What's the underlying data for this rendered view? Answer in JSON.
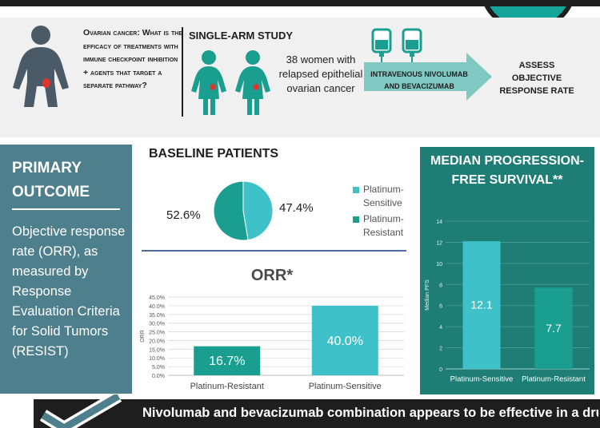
{
  "header": {
    "question": "Ovarian cancer: What is the efficacy of treatments with immune checkpoint inhibition + agents that target a separate pathway?",
    "study_title": "SINGLE-ARM STUDY",
    "study_desc": "38 women with relapsed epithelial ovarian cancer",
    "treatment": "INTRAVENOUS NIVOLUMAB AND BEVACIZUMAB",
    "outcome": "ASSESS OBJECTIVE RESPONSE RATE",
    "icons": [
      "woman-icon",
      "two-girls-icon",
      "iv-bag-icon"
    ]
  },
  "primary": {
    "title": "PRIMARY OUTCOME",
    "description": "Objective response rate (ORR), as measured by Response Evaluation Criteria for Solid Tumors (RESIST)"
  },
  "baseline": {
    "title": "BASELINE PATIENTS",
    "label_left": "52.6%",
    "label_right": "47.4%",
    "legend": [
      {
        "label": "Platinum-Sensitive",
        "color": "#3fc1c9"
      },
      {
        "label": "Platinum-Resistant",
        "color": "#1a9e90"
      }
    ]
  },
  "orr": {
    "title": "ORR*"
  },
  "pfs": {
    "title": "MEDIAN PROGRESSION-FREE SURVIVAL**"
  },
  "chart_data": [
    {
      "type": "pie",
      "categories": [
        "Platinum-Sensitive",
        "Platinum-Resistant"
      ],
      "values": [
        47.4,
        52.6
      ],
      "labels": [
        "47.4%",
        "52.6%"
      ],
      "colors": [
        "#3fc1c9",
        "#1a9e90"
      ],
      "title": "BASELINE PATIENTS"
    },
    {
      "type": "bar",
      "title": "ORR*",
      "categories": [
        "Platinum-Resistant",
        "Platinum-Sensitive"
      ],
      "values": [
        16.7,
        40.0
      ],
      "labels": [
        "16.7%",
        "40.0%"
      ],
      "colors": [
        "#1a9e90",
        "#3fc1c9"
      ],
      "ylabel": "ORR",
      "ylim": [
        0,
        45
      ],
      "yticks": [
        "0.0%",
        "5.0%",
        "10.0%",
        "15.0%",
        "20.0%",
        "25.0%",
        "30.0%",
        "35.0%",
        "40.0%",
        "45.0%"
      ],
      "grid": true
    },
    {
      "type": "bar",
      "title": "MEDIAN PROGRESSION-FREE SURVIVAL**",
      "categories": [
        "Platinum-Sensitive",
        "Platinum-Resistant"
      ],
      "values": [
        12.1,
        7.7
      ],
      "labels": [
        "12.1",
        "7.7"
      ],
      "colors": [
        "#3fc1c9",
        "#1a9e90"
      ],
      "ylabel": "Median PFS",
      "ylim": [
        0,
        14
      ],
      "yticks": [
        "0",
        "2",
        "4",
        "6",
        "8",
        "10",
        "12",
        "14"
      ],
      "grid": true
    }
  ],
  "footer": {
    "text": "Nivolumab and bevacizumab combination appears to be effective in a drug combination"
  },
  "colors": {
    "teal_light": "#3fc1c9",
    "teal_dark": "#1a9e90",
    "slate": "#4e7f8c",
    "pfs_panel": "#1e7d74",
    "dark": "#1e1e1e"
  }
}
